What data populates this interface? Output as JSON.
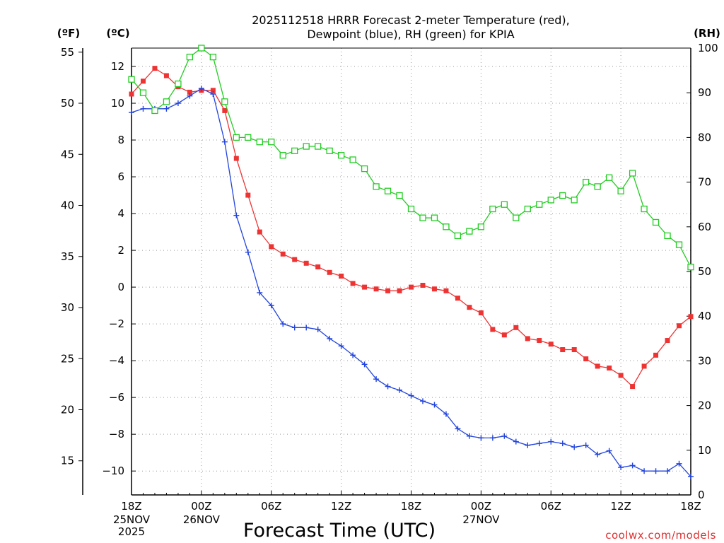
{
  "chart_data": {
    "type": "line",
    "title_line1": "2025112518 HRRR Forecast 2-meter Temperature (red),",
    "title_line2": "Dewpoint (blue), RH (green) for KPIA",
    "xlabel": "Forecast Time (UTC)",
    "credit": "coolwx.com/models",
    "unit_f": "(ºF)",
    "unit_c": "(ºC)",
    "unit_rh": "(RH)",
    "x_range": [
      0,
      48
    ],
    "c_range": [
      -11.3,
      13.0
    ],
    "rh_range": [
      0,
      100
    ],
    "f_ticks": [
      15,
      20,
      25,
      30,
      35,
      40,
      45,
      50,
      55
    ],
    "c_ticks": [
      -10,
      -8,
      -6,
      -4,
      -2,
      0,
      2,
      4,
      6,
      8,
      10,
      12
    ],
    "rh_ticks": [
      0,
      10,
      20,
      30,
      40,
      50,
      60,
      70,
      80,
      90,
      100
    ],
    "x_ticks": [
      {
        "x": 0,
        "label": "18Z",
        "label2": "25NOV",
        "label3": "2025"
      },
      {
        "x": 6,
        "label": "00Z",
        "label2": "26NOV",
        "label3": ""
      },
      {
        "x": 12,
        "label": "06Z",
        "label2": "",
        "label3": ""
      },
      {
        "x": 18,
        "label": "12Z",
        "label2": "",
        "label3": ""
      },
      {
        "x": 24,
        "label": "18Z",
        "label2": "",
        "label3": ""
      },
      {
        "x": 30,
        "label": "00Z",
        "label2": "27NOV",
        "label3": ""
      },
      {
        "x": 36,
        "label": "06Z",
        "label2": "",
        "label3": ""
      },
      {
        "x": 42,
        "label": "12Z",
        "label2": "",
        "label3": ""
      },
      {
        "x": 48,
        "label": "18Z",
        "label2": "",
        "label3": ""
      }
    ],
    "colors": {
      "temperature": "#ee3333",
      "dewpoint": "#2244dd",
      "rh": "#22cc22",
      "grid": "#999999"
    },
    "series": [
      {
        "name": "Temperature",
        "unit": "C",
        "values": [
          10.5,
          11.2,
          11.9,
          11.5,
          10.9,
          10.6,
          10.7,
          10.7,
          9.6,
          7.0,
          5.0,
          3.0,
          2.2,
          1.8,
          1.5,
          1.3,
          1.1,
          0.8,
          0.6,
          0.2,
          0.0,
          -0.1,
          -0.2,
          -0.2,
          0.0,
          0.1,
          -0.1,
          -0.2,
          -0.6,
          -1.1,
          -1.4,
          -2.3,
          -2.6,
          -2.2,
          -2.8,
          -2.9,
          -3.1,
          -3.4,
          -3.4,
          -3.9,
          -4.3,
          -4.4,
          -4.8,
          -5.4,
          -4.3,
          -3.7,
          -2.9,
          -2.1,
          -1.6
        ]
      },
      {
        "name": "Dewpoint",
        "unit": "C",
        "values": [
          9.5,
          9.7,
          9.7,
          9.7,
          10.0,
          10.4,
          10.8,
          10.5,
          7.9,
          3.9,
          1.9,
          -0.3,
          -1.0,
          -2.0,
          -2.2,
          -2.2,
          -2.3,
          -2.8,
          -3.2,
          -3.7,
          -4.2,
          -5.0,
          -5.4,
          -5.6,
          -5.9,
          -6.2,
          -6.4,
          -6.9,
          -7.7,
          -8.1,
          -8.2,
          -8.2,
          -8.1,
          -8.4,
          -8.6,
          -8.5,
          -8.4,
          -8.5,
          -8.7,
          -8.6,
          -9.1,
          -8.9,
          -9.8,
          -9.7,
          -10.0,
          -10.0,
          -10.0,
          -9.6,
          -10.3
        ]
      },
      {
        "name": "RH",
        "unit": "%",
        "values": [
          93,
          90,
          86,
          88,
          92,
          98,
          100,
          98,
          88,
          80,
          80,
          79,
          79,
          76,
          77,
          78,
          78,
          77,
          76,
          75,
          73,
          69,
          68,
          67,
          64,
          62,
          62,
          60,
          58,
          59,
          60,
          64,
          65,
          62,
          64,
          65,
          66,
          67,
          66,
          70,
          69,
          71,
          68,
          72,
          64,
          61,
          58,
          56,
          51
        ]
      }
    ]
  }
}
